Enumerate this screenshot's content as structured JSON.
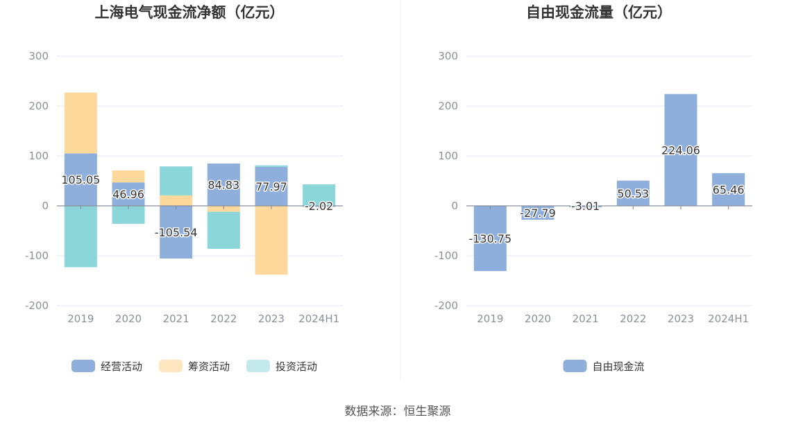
{
  "source": "数据来源：恒生聚源",
  "colors": {
    "operating": "#8eaedc",
    "financing": "#fdd89b",
    "investing": "#8ad6d9",
    "fcf": "#8eaedc",
    "legend_investing": "#c1e9eb",
    "legend_financing": "#fde6c0"
  },
  "chart_data": [
    {
      "type": "bar",
      "stacked": true,
      "title": "上海电气现金流净额（亿元）",
      "categories": [
        "2019",
        "2020",
        "2021",
        "2022",
        "2023",
        "2024H1"
      ],
      "ylim": [
        -200,
        300
      ],
      "yticks": [
        "300",
        "200",
        "100",
        "0",
        "-100",
        "-200"
      ],
      "ytick_values": [
        300,
        200,
        100,
        0,
        -100,
        -200
      ],
      "series": [
        {
          "name": "经营活动",
          "key": "operating",
          "values": [
            105.05,
            46.96,
            -105.54,
            84.83,
            77.97,
            -2.02
          ],
          "labels": [
            "105.05",
            "46.96",
            "-105.54",
            "84.83",
            "77.97",
            "-2.02"
          ]
        },
        {
          "name": "筹资活动",
          "key": "financing",
          "values": [
            122,
            24,
            21,
            -12,
            -138,
            0
          ]
        },
        {
          "name": "投资活动",
          "key": "investing",
          "values": [
            -123,
            -36,
            58,
            -74,
            3,
            43
          ]
        }
      ],
      "legend": [
        "经营活动",
        "筹资活动",
        "投资活动"
      ],
      "grid": true
    },
    {
      "type": "bar",
      "title": "自由现金流量（亿元）",
      "categories": [
        "2019",
        "2020",
        "2021",
        "2022",
        "2023",
        "2024H1"
      ],
      "ylim": [
        -200,
        300
      ],
      "yticks": [
        "300",
        "200",
        "100",
        "0",
        "-100",
        "-200"
      ],
      "ytick_values": [
        300,
        200,
        100,
        0,
        -100,
        -200
      ],
      "series": [
        {
          "name": "自由现金流",
          "key": "fcf",
          "values": [
            -130.75,
            -27.79,
            -3.01,
            50.53,
            224.06,
            65.46
          ],
          "labels": [
            "-130.75",
            "-27.79",
            "-3.01",
            "50.53",
            "224.06",
            "65.46"
          ]
        }
      ],
      "legend": [
        "自由现金流"
      ],
      "grid": true
    }
  ]
}
